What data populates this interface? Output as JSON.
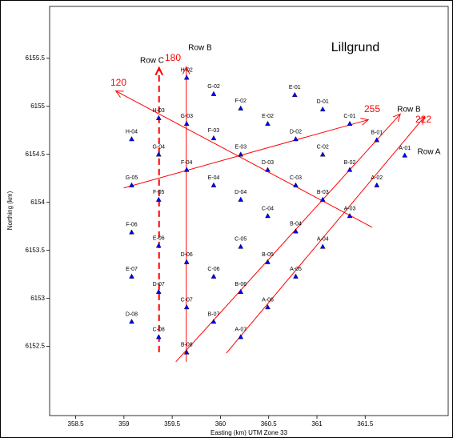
{
  "chart_data": {
    "type": "scatter",
    "title": "Lillgrund",
    "xlabel": "Easting (km) UTM Zone 33",
    "ylabel": "Northing (km)",
    "xlim": [
      358.23,
      362.36
    ],
    "ylim": [
      6151.78,
      6156.04
    ],
    "xticks": [
      358.5,
      359,
      359.5,
      360,
      360.5,
      361,
      361.5
    ],
    "yticks": [
      6152.5,
      6153,
      6153.5,
      6154,
      6154.5,
      6155,
      6155.5
    ],
    "marker_color": "#0000ff",
    "line_color": "#ff0000",
    "labels": [
      "H-02",
      "G-02",
      "F-02",
      "E-01",
      "D-01",
      "H-03",
      "G-03",
      "E-02",
      "C-01",
      "H-04",
      "F-03",
      "D-02",
      "B-01",
      "G-04",
      "E-03",
      "C-02",
      "A-01",
      "F-04",
      "D-03",
      "B-02",
      "G-05",
      "E-04",
      "C-03",
      "A-02",
      "F-05",
      "D-04",
      "B-03",
      "C-04",
      "A-03",
      "F-06",
      "B-04",
      "E-06",
      "C-05",
      "A-04",
      "D-06",
      "B-05",
      "E-07",
      "C-06",
      "A-05",
      "D-07",
      "B-06",
      "C-07",
      "A-06",
      "D-08",
      "B-07",
      "C-08",
      "A-07",
      "B-08"
    ],
    "x": [
      359.65,
      359.93,
      360.21,
      360.77,
      361.06,
      359.36,
      359.65,
      360.49,
      361.34,
      359.08,
      359.93,
      360.78,
      361.62,
      359.36,
      360.21,
      361.06,
      361.91,
      359.65,
      360.49,
      361.34,
      359.08,
      359.93,
      360.78,
      361.62,
      359.36,
      360.21,
      361.06,
      360.49,
      361.34,
      359.08,
      360.78,
      359.36,
      360.21,
      361.06,
      359.65,
      360.49,
      359.08,
      359.93,
      360.78,
      359.36,
      360.21,
      359.65,
      360.49,
      359.08,
      359.93,
      359.36,
      360.21,
      359.65
    ],
    "y": [
      6155.3,
      6155.13,
      6154.98,
      6155.12,
      6154.97,
      6154.88,
      6154.82,
      6154.82,
      6154.82,
      6154.66,
      6154.67,
      6154.66,
      6154.65,
      6154.5,
      6154.5,
      6154.5,
      6154.49,
      6154.34,
      6154.34,
      6154.34,
      6154.18,
      6154.18,
      6154.18,
      6154.18,
      6154.03,
      6154.03,
      6154.03,
      6153.86,
      6153.86,
      6153.69,
      6153.7,
      6153.55,
      6153.54,
      6153.54,
      6153.38,
      6153.38,
      6153.23,
      6153.23,
      6153.23,
      6153.07,
      6153.07,
      6152.91,
      6152.91,
      6152.76,
      6152.76,
      6152.6,
      6152.6,
      6152.44
    ],
    "lines": [
      {
        "x": [
          359.646,
          359.646
        ],
        "y": [
          6152.34,
          6155.41
        ],
        "dashed": false
      },
      {
        "x": [
          359.364,
          359.364
        ],
        "y": [
          6152.44,
          6155.4
        ],
        "dashed": true
      },
      {
        "x": [
          361.573,
          358.915
        ],
        "y": [
          6153.74,
          6155.16
        ],
        "dashed": false
      },
      {
        "x": [
          358.998,
          361.532
        ],
        "y": [
          6154.15,
          6154.86
        ],
        "dashed": false
      },
      {
        "x": [
          359.538,
          361.864
        ],
        "y": [
          6152.34,
          6154.92
        ],
        "dashed": false
      },
      {
        "x": [
          360.061,
          362.113
        ],
        "y": [
          6152.43,
          6154.89
        ],
        "dashed": false
      }
    ],
    "annotations": [
      "Row C",
      "180",
      "Row B",
      "120",
      "255",
      "Row B",
      "222",
      "Row A"
    ]
  }
}
